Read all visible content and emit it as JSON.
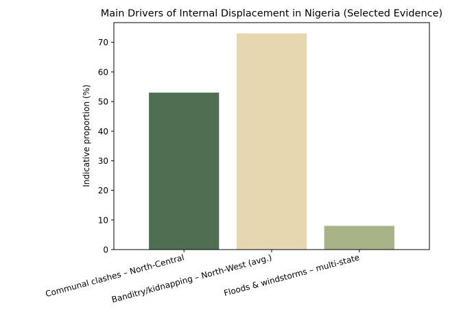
{
  "chart_data": {
    "type": "bar",
    "title": "Main Drivers of Internal Displacement in Nigeria (Selected Evidence)",
    "xlabel": "",
    "ylabel": "Indicative proportion (%)",
    "categories": [
      "Communal clashes – North-Central",
      "Banditry/kidnapping – North-West (avg.)",
      "Floods & windstorms – multi-state"
    ],
    "values": [
      53,
      73,
      8
    ],
    "colors": [
      "#4f6f52",
      "#e6d7b1",
      "#a8b487"
    ],
    "ylim": [
      0,
      76.65
    ],
    "yticks": [
      0,
      10,
      20,
      30,
      40,
      50,
      60,
      70
    ],
    "grid": false,
    "legend": "none"
  }
}
